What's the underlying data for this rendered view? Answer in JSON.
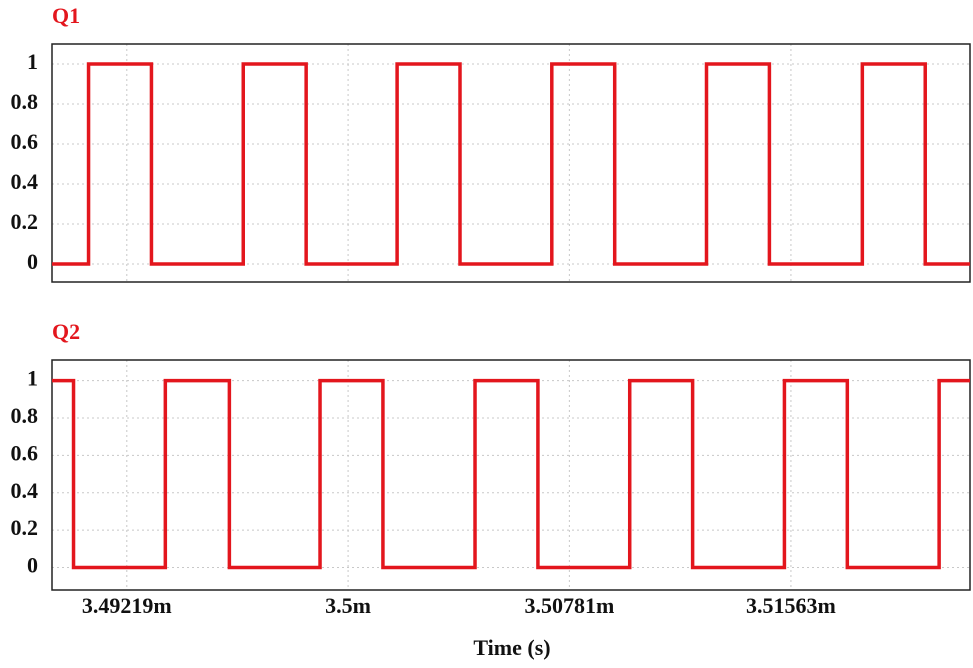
{
  "chart_data": [
    {
      "type": "line",
      "title": "Q1",
      "color": "#e3161d",
      "x": [
        3.48955,
        3.49084,
        3.49084,
        3.49306,
        3.49306,
        3.4963,
        3.4963,
        3.49852,
        3.49852,
        3.50173,
        3.50173,
        3.50395,
        3.50395,
        3.50719,
        3.50719,
        3.50941,
        3.50941,
        3.51265,
        3.51265,
        3.51487,
        3.51487,
        3.51815,
        3.51815,
        3.52037,
        3.52037,
        3.52195
      ],
      "values": [
        0,
        0,
        1,
        1,
        0,
        0,
        1,
        1,
        0,
        0,
        1,
        1,
        0,
        0,
        1,
        1,
        0,
        0,
        1,
        1,
        0,
        0,
        1,
        1,
        0,
        0
      ],
      "xlim": [
        3.48955,
        3.52195
      ],
      "ylim": [
        -0.09,
        1.1
      ],
      "yticks": [
        0,
        0.2,
        0.4,
        0.6,
        0.8,
        1
      ],
      "grid": true
    },
    {
      "type": "line",
      "title": "Q2",
      "color": "#e3161d",
      "xlabel": "Time (s)",
      "x": [
        3.48955,
        3.49031,
        3.49031,
        3.49355,
        3.49355,
        3.49581,
        3.49581,
        3.49901,
        3.49901,
        3.50123,
        3.50123,
        3.50448,
        3.50448,
        3.5067,
        3.5067,
        3.50994,
        3.50994,
        3.51216,
        3.51216,
        3.5154,
        3.5154,
        3.51762,
        3.51762,
        3.52086,
        3.52086,
        3.52195
      ],
      "values": [
        1,
        1,
        0,
        0,
        1,
        1,
        0,
        0,
        1,
        1,
        0,
        0,
        1,
        1,
        0,
        0,
        1,
        1,
        0,
        0,
        1,
        1,
        0,
        0,
        1,
        1
      ],
      "xlim": [
        3.48955,
        3.52195
      ],
      "xticks": [
        {
          "value": 3.49219,
          "label": "3.49219m"
        },
        {
          "value": 3.5,
          "label": "3.5m"
        },
        {
          "value": 3.50781,
          "label": "3.50781m"
        },
        {
          "value": 3.51563,
          "label": "3.51563m"
        }
      ],
      "ylim": [
        -0.12,
        1.11
      ],
      "yticks": [
        0,
        0.2,
        0.4,
        0.6,
        0.8,
        1
      ],
      "grid": true
    }
  ]
}
